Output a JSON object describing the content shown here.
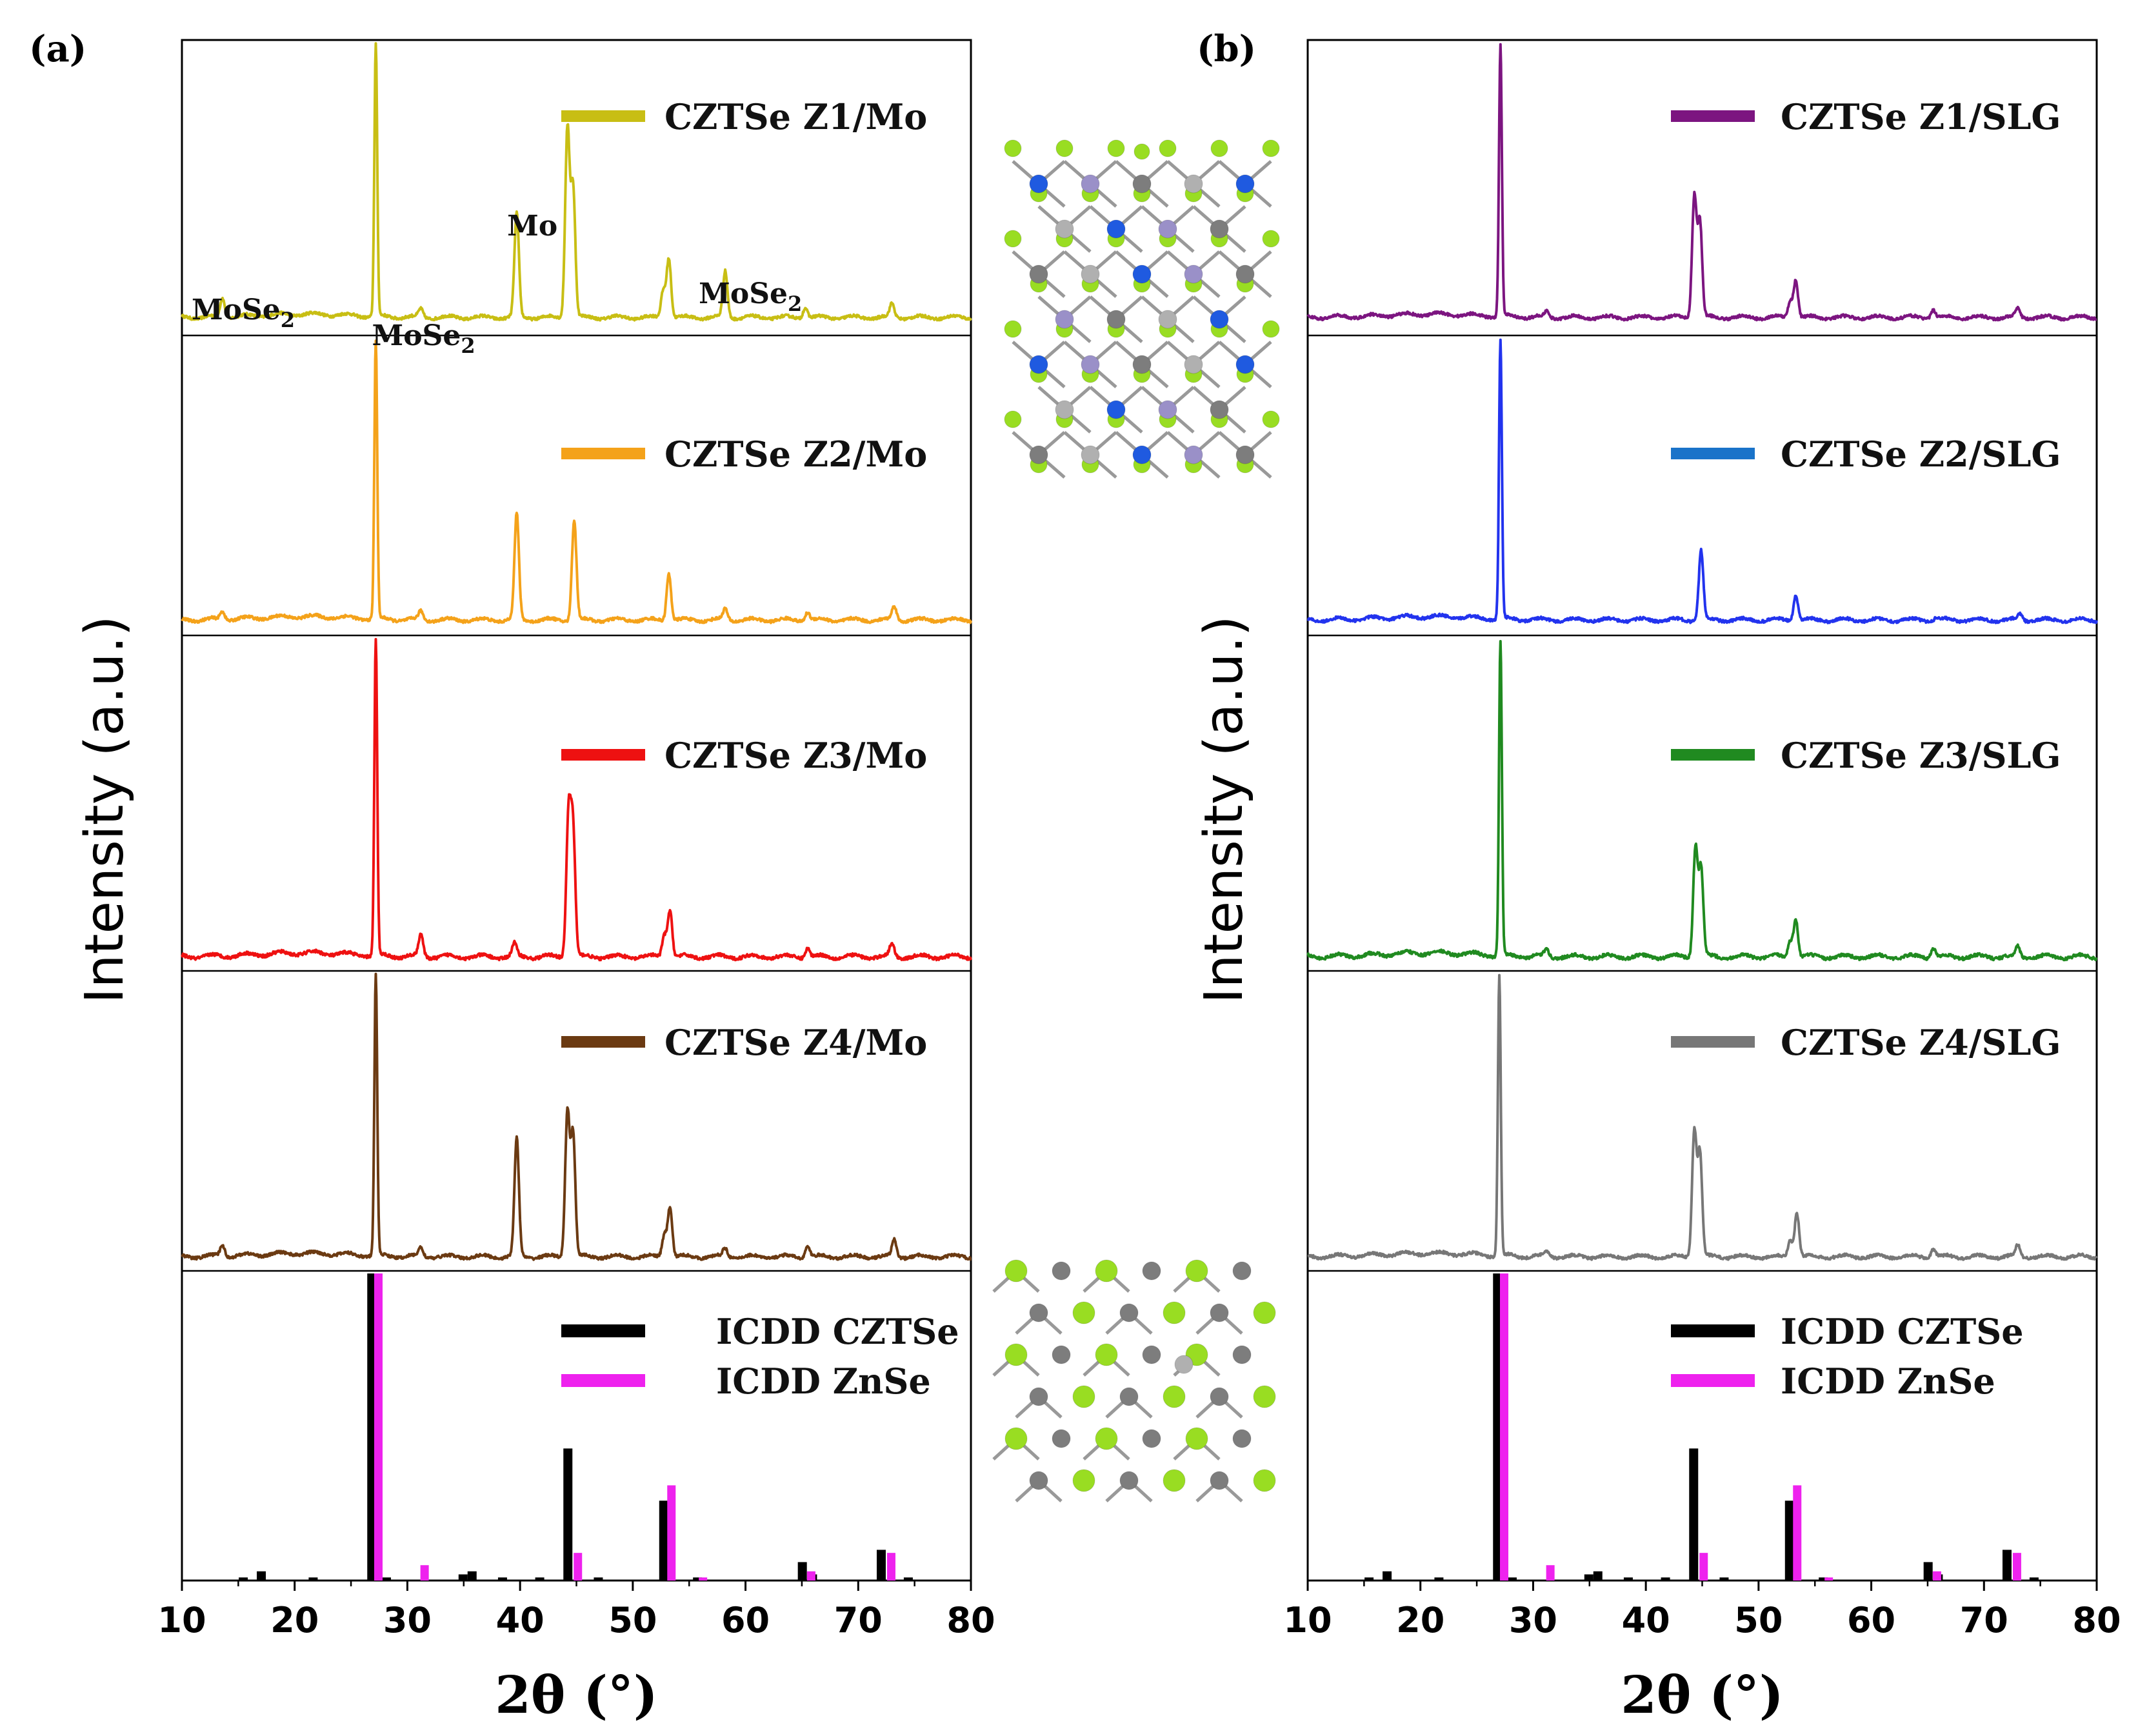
{
  "chart_data": [
    {
      "type": "line",
      "panel_label": "(a)",
      "xlabel": "2θ (°)",
      "ylabel": "Intensity (a.u.)",
      "xlim": [
        10,
        80
      ],
      "x_ticks": [
        "10",
        "20",
        "30",
        "40",
        "50",
        "60",
        "70",
        "80"
      ],
      "annotations": [
        {
          "text": "MoSe",
          "sub": "2",
          "x": 12
        },
        {
          "text": "MoSe",
          "sub": "2",
          "x": 28
        },
        {
          "text": "Mo",
          "sub": "",
          "x": 40
        },
        {
          "text": "MoSe",
          "sub": "2",
          "x": 57
        }
      ],
      "series": [
        {
          "name": "CZTSe Z1/Mo",
          "color": "#c8be14",
          "peaks": [
            [
              13.6,
              0.07
            ],
            [
              27.2,
              1.0
            ],
            [
              31.2,
              0.03
            ],
            [
              39.7,
              0.38
            ],
            [
              44.2,
              0.7
            ],
            [
              44.7,
              0.48
            ],
            [
              52.7,
              0.1
            ],
            [
              53.2,
              0.22
            ],
            [
              58.2,
              0.17
            ],
            [
              65.3,
              0.04
            ],
            [
              73.0,
              0.05
            ]
          ]
        },
        {
          "name": "CZTSe Z2/Mo",
          "color": "#f4a21a",
          "peaks": [
            [
              13.6,
              0.03
            ],
            [
              27.2,
              1.0
            ],
            [
              31.2,
              0.03
            ],
            [
              39.7,
              0.38
            ],
            [
              44.8,
              0.36
            ],
            [
              53.2,
              0.17
            ],
            [
              58.2,
              0.04
            ],
            [
              65.5,
              0.03
            ],
            [
              73.2,
              0.05
            ]
          ]
        },
        {
          "name": "CZTSe Z3/Mo",
          "color": "#ee1111",
          "peaks": [
            [
              27.2,
              1.0
            ],
            [
              31.2,
              0.07
            ],
            [
              39.5,
              0.04
            ],
            [
              44.3,
              0.45
            ],
            [
              44.7,
              0.4
            ],
            [
              52.8,
              0.07
            ],
            [
              53.3,
              0.15
            ],
            [
              65.5,
              0.03
            ],
            [
              73.0,
              0.04
            ]
          ]
        },
        {
          "name": "CZTSe Z4/Mo",
          "color": "#6b3a12",
          "peaks": [
            [
              13.6,
              0.04
            ],
            [
              27.2,
              1.0
            ],
            [
              31.2,
              0.03
            ],
            [
              39.7,
              0.42
            ],
            [
              44.2,
              0.52
            ],
            [
              44.7,
              0.44
            ],
            [
              52.8,
              0.08
            ],
            [
              53.3,
              0.18
            ],
            [
              58.2,
              0.03
            ],
            [
              65.5,
              0.04
            ],
            [
              73.2,
              0.06
            ]
          ]
        }
      ],
      "reference": {
        "legend": [
          {
            "name": "ICDD CZTSe",
            "color": "#000000"
          },
          {
            "name": "ICDD ZnSe",
            "color": "#ee22ee"
          }
        ],
        "czts_bars": [
          [
            15.5,
            0.01
          ],
          [
            17.1,
            0.03
          ],
          [
            21.7,
            0.01
          ],
          [
            26.9,
            1.0
          ],
          [
            28.2,
            0.01
          ],
          [
            35.0,
            0.02
          ],
          [
            35.8,
            0.03
          ],
          [
            38.5,
            0.01
          ],
          [
            41.8,
            0.01
          ],
          [
            44.3,
            0.43
          ],
          [
            47.0,
            0.01
          ],
          [
            52.8,
            0.26
          ],
          [
            55.8,
            0.01
          ],
          [
            65.1,
            0.06
          ],
          [
            66.0,
            0.02
          ],
          [
            72.1,
            0.1
          ],
          [
            74.5,
            0.01
          ]
        ],
        "znse_bars": [
          [
            27.4,
            1.0
          ],
          [
            31.5,
            0.05
          ],
          [
            45.1,
            0.09
          ],
          [
            53.4,
            0.31
          ],
          [
            56.2,
            0.01
          ],
          [
            65.8,
            0.03
          ],
          [
            72.9,
            0.09
          ]
        ]
      }
    },
    {
      "type": "line",
      "panel_label": "(b)",
      "xlabel": "2θ (°)",
      "ylabel": "Intensity (a.u.)",
      "xlim": [
        10,
        80
      ],
      "x_ticks": [
        "10",
        "20",
        "30",
        "40",
        "50",
        "60",
        "70",
        "80"
      ],
      "series": [
        {
          "name": "CZTSe Z1/SLG",
          "color": "#7c1580",
          "legend_color": "#7c1580",
          "peaks": [
            [
              27.1,
              1.0
            ],
            [
              31.2,
              0.02
            ],
            [
              44.3,
              0.45
            ],
            [
              44.8,
              0.35
            ],
            [
              52.8,
              0.06
            ],
            [
              53.3,
              0.14
            ],
            [
              65.5,
              0.03
            ],
            [
              73.0,
              0.03
            ]
          ]
        },
        {
          "name": "CZTSe Z2/SLG",
          "color": "#2233ee",
          "legend_color": "#1a73c9",
          "peaks": [
            [
              27.1,
              1.0
            ],
            [
              44.9,
              0.25
            ],
            [
              53.3,
              0.09
            ],
            [
              65.8,
              0.01
            ],
            [
              73.2,
              0.02
            ]
          ]
        },
        {
          "name": "CZTSe Z3/SLG",
          "color": "#208a20",
          "legend_color": "#208a20",
          "peaks": [
            [
              27.1,
              1.0
            ],
            [
              31.2,
              0.02
            ],
            [
              44.4,
              0.35
            ],
            [
              44.9,
              0.28
            ],
            [
              52.8,
              0.05
            ],
            [
              53.3,
              0.12
            ],
            [
              65.5,
              0.03
            ],
            [
              73.0,
              0.03
            ]
          ]
        },
        {
          "name": "CZTSe Z4/SLG",
          "color": "#777777",
          "legend_color": "#777777",
          "peaks": [
            [
              27.0,
              1.0
            ],
            [
              31.2,
              0.02
            ],
            [
              44.3,
              0.45
            ],
            [
              44.8,
              0.37
            ],
            [
              52.8,
              0.06
            ],
            [
              53.4,
              0.16
            ],
            [
              65.5,
              0.03
            ],
            [
              73.0,
              0.04
            ]
          ]
        }
      ],
      "reference": {
        "legend": [
          {
            "name": "ICDD CZTSe",
            "color": "#000000"
          },
          {
            "name": "ICDD ZnSe",
            "color": "#ee22ee"
          }
        ],
        "czts_bars": [
          [
            15.5,
            0.01
          ],
          [
            17.1,
            0.03
          ],
          [
            21.7,
            0.01
          ],
          [
            26.9,
            1.0
          ],
          [
            28.2,
            0.01
          ],
          [
            35.0,
            0.02
          ],
          [
            35.8,
            0.03
          ],
          [
            38.5,
            0.01
          ],
          [
            41.8,
            0.01
          ],
          [
            44.3,
            0.43
          ],
          [
            47.0,
            0.01
          ],
          [
            52.8,
            0.26
          ],
          [
            55.8,
            0.01
          ],
          [
            65.1,
            0.06
          ],
          [
            66.0,
            0.02
          ],
          [
            72.1,
            0.1
          ],
          [
            74.5,
            0.01
          ]
        ],
        "znse_bars": [
          [
            27.4,
            1.0
          ],
          [
            31.5,
            0.05
          ],
          [
            45.1,
            0.09
          ],
          [
            53.4,
            0.31
          ],
          [
            56.2,
            0.01
          ],
          [
            65.8,
            0.03
          ],
          [
            72.9,
            0.09
          ]
        ]
      }
    }
  ],
  "crystal_colors": {
    "se": "#99dd22",
    "metal_dark": "#7d7d7d",
    "metal_light": "#b0b0b0",
    "sn_purple": "#9a90c8",
    "zn_blue": "#1f5ae0",
    "bond": "#999999"
  }
}
